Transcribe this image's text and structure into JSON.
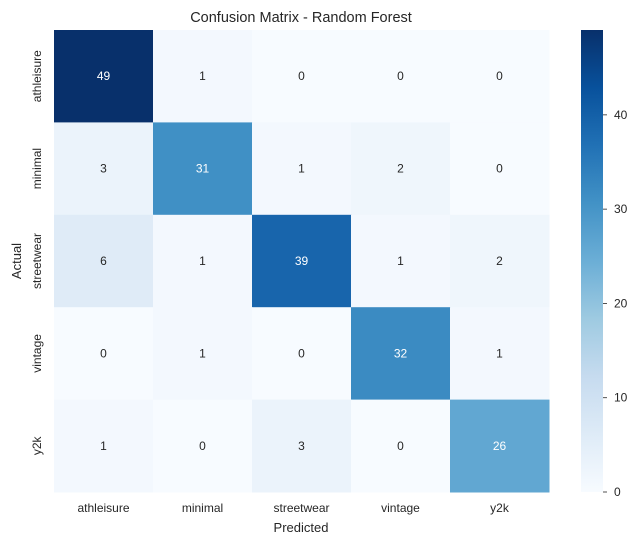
{
  "chart_data": {
    "type": "heatmap",
    "title": "Confusion Matrix - Random Forest",
    "xlabel": "Predicted",
    "ylabel": "Actual",
    "x_categories": [
      "athleisure",
      "minimal",
      "streetwear",
      "vintage",
      "y2k"
    ],
    "y_categories": [
      "athleisure",
      "minimal",
      "streetwear",
      "vintage",
      "y2k"
    ],
    "values": [
      [
        49,
        1,
        0,
        0,
        0
      ],
      [
        3,
        31,
        1,
        2,
        0
      ],
      [
        6,
        1,
        39,
        1,
        2
      ],
      [
        0,
        1,
        0,
        32,
        1
      ],
      [
        1,
        0,
        3,
        0,
        26
      ]
    ],
    "colormap": "Blues",
    "color_range": [
      0,
      49
    ],
    "colorbar_ticks": [
      0,
      10,
      20,
      30,
      40
    ],
    "grid": false
  }
}
